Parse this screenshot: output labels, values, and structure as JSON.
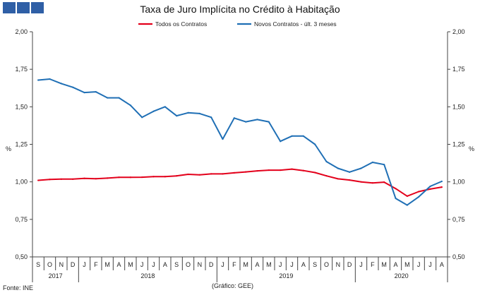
{
  "header": {
    "title": "Taxa de Juro Implícita no Crédito à Habitação"
  },
  "footer": {
    "source": "Fonte: INE",
    "credit": "(Gráfico: GEE)"
  },
  "colors": {
    "logo": "#2f5fa6",
    "series_total": "#e3001b",
    "series_new": "#1f6fb5",
    "axis": "#444444"
  },
  "chart_data": {
    "type": "line",
    "title": "Taxa de Juro Implícita no Crédito à Habitação",
    "ylabel_left": "%",
    "ylabel_right": "%",
    "ylim": [
      0.5,
      2.0
    ],
    "yticks": [
      "0,50",
      "0,75",
      "1,00",
      "1,25",
      "1,50",
      "1,75",
      "2,00"
    ],
    "ytick_values": [
      0.5,
      0.75,
      1.0,
      1.25,
      1.5,
      1.75,
      2.0
    ],
    "months": [
      "S",
      "O",
      "N",
      "D",
      "J",
      "F",
      "M",
      "A",
      "M",
      "J",
      "J",
      "A",
      "S",
      "O",
      "N",
      "D",
      "J",
      "F",
      "M",
      "A",
      "M",
      "J",
      "J",
      "A",
      "S",
      "O",
      "N",
      "D",
      "J",
      "F",
      "M",
      "A",
      "M",
      "J",
      "J",
      "A"
    ],
    "years": [
      {
        "label": "2017",
        "start": 0,
        "end": 3
      },
      {
        "label": "2018",
        "start": 4,
        "end": 15
      },
      {
        "label": "2019",
        "start": 16,
        "end": 27
      },
      {
        "label": "2020",
        "start": 28,
        "end": 35
      }
    ],
    "series": [
      {
        "name": "Todos os Contratos",
        "color": "#e3001b",
        "values": [
          1.01,
          1.016,
          1.018,
          1.018,
          1.023,
          1.021,
          1.025,
          1.03,
          1.03,
          1.031,
          1.035,
          1.035,
          1.04,
          1.05,
          1.047,
          1.053,
          1.053,
          1.06,
          1.066,
          1.073,
          1.078,
          1.078,
          1.085,
          1.075,
          1.062,
          1.04,
          1.02,
          1.012,
          1.0,
          0.993,
          0.998,
          0.955,
          0.905,
          0.935,
          0.952,
          0.965
        ]
      },
      {
        "name": "Novos Contratos - últ. 3 meses",
        "color": "#1f6fb5",
        "values": [
          1.678,
          1.685,
          1.655,
          1.63,
          1.595,
          1.6,
          1.56,
          1.56,
          1.51,
          1.43,
          1.47,
          1.5,
          1.44,
          1.46,
          1.455,
          1.43,
          1.285,
          1.425,
          1.4,
          1.415,
          1.4,
          1.27,
          1.305,
          1.305,
          1.25,
          1.135,
          1.09,
          1.065,
          1.09,
          1.13,
          1.115,
          0.89,
          0.845,
          0.9,
          0.97,
          1.003
        ]
      }
    ]
  }
}
